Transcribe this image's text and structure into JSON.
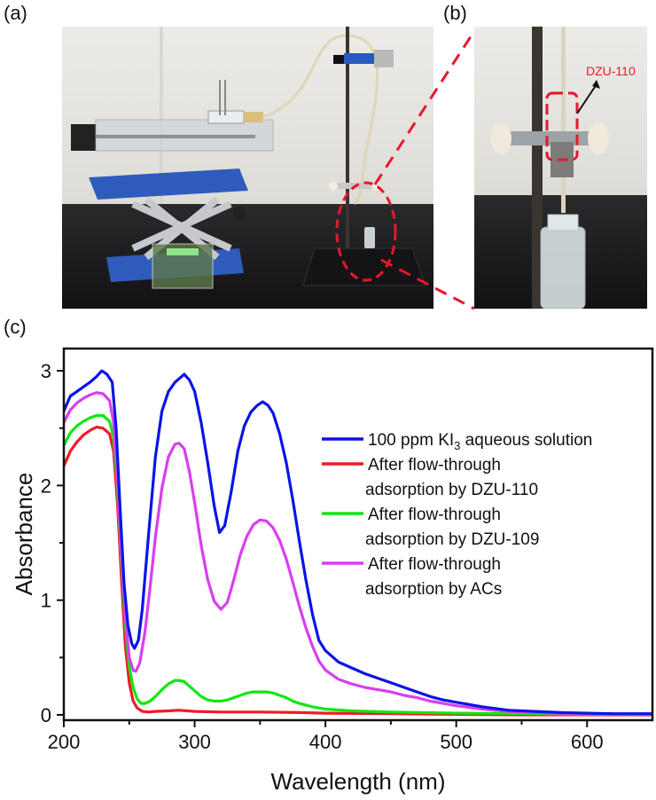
{
  "figure": {
    "panel_labels": {
      "a": "(a)",
      "b": "(b)",
      "c": "(c)"
    },
    "photo_b_annotation": {
      "label": "DZU-110",
      "color": "#e8172c"
    }
  },
  "chart_data": {
    "type": "line",
    "title": "",
    "xlabel": "Wavelength (nm)",
    "ylabel": "Absorbance",
    "xlim": [
      200,
      650
    ],
    "ylim": [
      -0.05,
      3.2
    ],
    "xticks": [
      200,
      300,
      400,
      500,
      600
    ],
    "xticks_minor": [
      250,
      350,
      450,
      550
    ],
    "yticks": [
      0,
      1,
      2,
      3
    ],
    "yticks_minor": [
      0.5,
      1.5,
      2.5
    ],
    "grid": false,
    "legend_position": "upper right (inside)",
    "series": [
      {
        "name": "100 ppm KI3 aqueous solution",
        "legend_main": "100 ppm KI",
        "legend_sub": "3",
        "legend_tail": " aqueous solution",
        "color": "#0a14e6",
        "x": [
          200,
          205,
          210,
          215,
          220,
          225,
          229,
          233,
          237,
          240,
          243,
          246,
          249,
          252,
          254,
          257,
          260,
          265,
          270,
          275,
          280,
          285,
          289,
          292,
          296,
          300,
          305,
          310,
          315,
          319,
          323,
          328,
          333,
          338,
          343,
          348,
          352,
          356,
          360,
          365,
          370,
          375,
          380,
          385,
          390,
          395,
          400,
          410,
          420,
          430,
          440,
          450,
          460,
          470,
          480,
          490,
          500,
          520,
          540,
          560,
          580,
          600,
          620,
          650
        ],
        "y": [
          2.65,
          2.78,
          2.82,
          2.86,
          2.9,
          2.95,
          3.0,
          2.97,
          2.9,
          2.5,
          1.8,
          1.15,
          0.78,
          0.62,
          0.58,
          0.65,
          0.92,
          1.6,
          2.25,
          2.65,
          2.82,
          2.9,
          2.94,
          2.97,
          2.92,
          2.82,
          2.55,
          2.2,
          1.82,
          1.59,
          1.65,
          1.95,
          2.3,
          2.52,
          2.64,
          2.7,
          2.73,
          2.7,
          2.63,
          2.45,
          2.2,
          1.88,
          1.52,
          1.18,
          0.88,
          0.65,
          0.56,
          0.46,
          0.41,
          0.36,
          0.32,
          0.28,
          0.24,
          0.2,
          0.16,
          0.13,
          0.11,
          0.07,
          0.04,
          0.03,
          0.02,
          0.015,
          0.01,
          0.01
        ]
      },
      {
        "name": "After flow-through adsorption by DZU-110",
        "legend_line1": "After flow-through",
        "legend_line2": "adsorption by DZU-110",
        "color": "#ee1c25",
        "x": [
          200,
          205,
          210,
          215,
          220,
          225,
          230,
          235,
          238,
          241,
          244,
          247,
          250,
          253,
          256,
          260,
          265,
          270,
          280,
          288,
          300,
          320,
          350,
          380,
          400,
          450,
          500,
          550,
          600,
          650
        ],
        "y": [
          2.17,
          2.3,
          2.38,
          2.44,
          2.48,
          2.51,
          2.5,
          2.45,
          2.3,
          1.85,
          1.2,
          0.6,
          0.28,
          0.12,
          0.06,
          0.03,
          0.025,
          0.03,
          0.035,
          0.04,
          0.03,
          0.025,
          0.025,
          0.02,
          0.015,
          0.01,
          0.005,
          0.0,
          0.0,
          0.0
        ]
      },
      {
        "name": "After flow-through adsorption by DZU-109",
        "legend_line1": "After flow-through",
        "legend_line2": "adsorption by DZU-109",
        "color": "#12e612",
        "x": [
          200,
          205,
          210,
          215,
          220,
          225,
          230,
          235,
          238,
          241,
          244,
          247,
          250,
          253,
          256,
          259,
          262,
          266,
          270,
          275,
          280,
          285,
          288,
          292,
          296,
          300,
          305,
          310,
          315,
          320,
          325,
          330,
          335,
          340,
          345,
          350,
          355,
          360,
          365,
          370,
          375,
          380,
          390,
          400,
          420,
          450,
          500,
          550,
          600,
          650
        ],
        "y": [
          2.35,
          2.46,
          2.52,
          2.56,
          2.59,
          2.61,
          2.61,
          2.56,
          2.42,
          1.98,
          1.35,
          0.78,
          0.42,
          0.24,
          0.14,
          0.1,
          0.1,
          0.12,
          0.16,
          0.22,
          0.27,
          0.3,
          0.3,
          0.29,
          0.25,
          0.21,
          0.16,
          0.13,
          0.12,
          0.12,
          0.13,
          0.15,
          0.17,
          0.19,
          0.2,
          0.2,
          0.2,
          0.19,
          0.17,
          0.15,
          0.12,
          0.1,
          0.07,
          0.05,
          0.035,
          0.025,
          0.015,
          0.01,
          0.005,
          0.005
        ]
      },
      {
        "name": "After flow-through adsorption by ACs",
        "legend_line1": "After flow-through",
        "legend_line2": "adsorption by ACs",
        "color": "#d93ef0",
        "x": [
          200,
          205,
          210,
          215,
          220,
          225,
          230,
          235,
          238,
          241,
          244,
          247,
          250,
          253,
          255,
          258,
          262,
          266,
          270,
          275,
          280,
          285,
          288,
          292,
          296,
          300,
          305,
          310,
          315,
          320,
          325,
          330,
          335,
          340,
          345,
          350,
          355,
          360,
          365,
          370,
          375,
          380,
          385,
          390,
          395,
          400,
          410,
          420,
          430,
          440,
          450,
          460,
          470,
          480,
          490,
          500,
          520,
          540,
          560,
          580,
          600,
          620,
          650
        ],
        "y": [
          2.55,
          2.66,
          2.72,
          2.76,
          2.79,
          2.81,
          2.8,
          2.74,
          2.55,
          2.05,
          1.4,
          0.85,
          0.5,
          0.39,
          0.38,
          0.45,
          0.72,
          1.12,
          1.55,
          1.98,
          2.25,
          2.36,
          2.37,
          2.32,
          2.12,
          1.85,
          1.48,
          1.18,
          0.99,
          0.92,
          0.98,
          1.18,
          1.4,
          1.56,
          1.66,
          1.7,
          1.69,
          1.63,
          1.52,
          1.36,
          1.16,
          0.95,
          0.76,
          0.6,
          0.47,
          0.39,
          0.31,
          0.27,
          0.24,
          0.22,
          0.2,
          0.17,
          0.15,
          0.12,
          0.1,
          0.08,
          0.05,
          0.03,
          0.02,
          0.012,
          0.01,
          0.008,
          0.005
        ]
      }
    ]
  }
}
